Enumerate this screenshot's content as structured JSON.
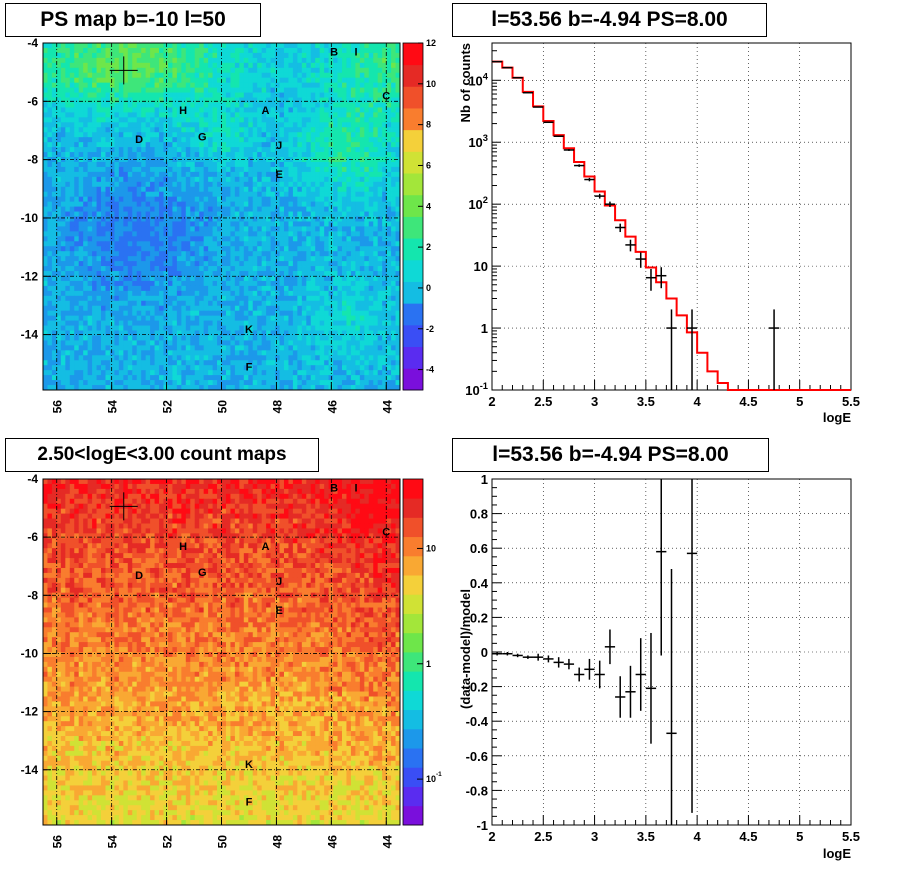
{
  "titles": {
    "top_left": "PS map b=-10 l=50",
    "top_right": "l=53.56 b=-4.94 PS=8.00",
    "bottom_left": "2.50<logE<3.00 count maps",
    "bottom_right": "l=53.56 b=-4.94 PS=8.00"
  },
  "colors": {
    "model_line": "#ff0000",
    "data_marker": "#000000",
    "grid": "#000000"
  },
  "chart_data": [
    {
      "type": "heatmap",
      "title": "PS map b=-10 l=50",
      "x_ticks": [
        56,
        54,
        52,
        50,
        48,
        46,
        44
      ],
      "y_ticks": [
        -4,
        -6,
        -8,
        -10,
        -12,
        -14
      ],
      "xlim": [
        56.5,
        43.5
      ],
      "ylim": [
        -15.9,
        -4
      ],
      "grid": true,
      "colorbar_ticks": [
        -4,
        -2,
        0,
        2,
        4,
        6,
        8,
        10,
        12
      ],
      "colorbar_range": [
        -5,
        12
      ],
      "marker": {
        "l": 53.56,
        "b": -4.94
      },
      "sources": [
        {
          "label": "B",
          "l": 45.9,
          "b": -4.3
        },
        {
          "label": "I",
          "l": 45.1,
          "b": -4.3
        },
        {
          "label": "C",
          "l": 44.0,
          "b": -5.8
        },
        {
          "label": "A",
          "l": 48.4,
          "b": -6.3
        },
        {
          "label": "H",
          "l": 51.4,
          "b": -6.3
        },
        {
          "label": "G",
          "l": 50.7,
          "b": -7.2
        },
        {
          "label": "D",
          "l": 53.0,
          "b": -7.3
        },
        {
          "label": "J",
          "l": 47.9,
          "b": -7.5
        },
        {
          "label": "E",
          "l": 47.9,
          "b": -8.5
        },
        {
          "label": "K",
          "l": 49.0,
          "b": -13.8
        },
        {
          "label": "F",
          "l": 49.0,
          "b": -15.1
        }
      ]
    },
    {
      "type": "line",
      "title": "l=53.56 b=-4.94 PS=8.00",
      "xlabel": "logE",
      "ylabel": "Nb of counts",
      "xlim": [
        2,
        5.5
      ],
      "ylim": [
        0.1,
        40000
      ],
      "yscale": "log",
      "x_ticks": [
        2,
        2.5,
        3,
        3.5,
        4,
        4.5,
        5,
        5.5
      ],
      "y_tick_labels": [
        "10^-1",
        "1",
        "10",
        "10^2",
        "10^3",
        "10^4"
      ],
      "grid": true,
      "series": [
        {
          "kind": "model",
          "bin_edges": [
            2.0,
            2.1,
            2.2,
            2.3,
            2.4,
            2.5,
            2.6,
            2.7,
            2.8,
            2.9,
            3.0,
            3.1,
            3.2,
            3.3,
            3.4,
            3.5,
            3.6,
            3.7,
            3.8,
            3.9,
            4.0,
            4.1,
            4.2,
            4.3,
            5.5
          ],
          "values": [
            20000,
            16000,
            11000,
            6500,
            3800,
            2200,
            1300,
            800,
            480,
            280,
            160,
            95,
            55,
            30,
            17,
            9.5,
            5.5,
            3,
            1.6,
            0.85,
            0.4,
            0.2,
            0.13,
            0.1
          ]
        },
        {
          "kind": "data",
          "x": [
            2.05,
            2.15,
            2.25,
            2.35,
            2.45,
            2.55,
            2.65,
            2.75,
            2.85,
            2.95,
            3.05,
            3.15,
            3.25,
            3.35,
            3.45,
            3.55,
            3.65,
            3.75,
            3.95,
            4.75
          ],
          "y": [
            20000,
            16000,
            11000,
            6300,
            3700,
            2100,
            1250,
            750,
            420,
            250,
            135,
            100,
            42,
            22,
            13,
            6.5,
            7,
            1,
            1,
            1
          ],
          "err_lo": [
            140,
            126,
            105,
            79,
            61,
            46,
            35,
            27,
            20,
            16,
            12,
            10,
            6.5,
            4.7,
            3.6,
            2.5,
            2.6,
            0.9,
            0.9,
            0.9
          ],
          "err_hi": [
            140,
            126,
            105,
            79,
            61,
            46,
            35,
            27,
            20,
            16,
            12,
            10,
            6.5,
            4.7,
            3.6,
            2.5,
            2.6,
            1,
            1,
            1
          ]
        }
      ]
    },
    {
      "type": "heatmap",
      "title": "2.50<logE<3.00 count maps",
      "x_ticks": [
        56,
        54,
        52,
        50,
        48,
        46,
        44
      ],
      "y_ticks": [
        -4,
        -6,
        -8,
        -10,
        -12,
        -14
      ],
      "xlim": [
        56.5,
        43.5
      ],
      "ylim": [
        -15.9,
        -4
      ],
      "grid": true,
      "colorbar_scale": "log",
      "colorbar_ticks": [
        "10^-1",
        "1",
        "10"
      ],
      "colorbar_range": [
        0.04,
        40
      ],
      "marker": {
        "l": 53.56,
        "b": -4.94
      },
      "sources": [
        {
          "label": "B",
          "l": 45.9,
          "b": -4.3
        },
        {
          "label": "I",
          "l": 45.1,
          "b": -4.3
        },
        {
          "label": "C",
          "l": 44.0,
          "b": -5.8
        },
        {
          "label": "A",
          "l": 48.4,
          "b": -6.3
        },
        {
          "label": "H",
          "l": 51.4,
          "b": -6.3
        },
        {
          "label": "G",
          "l": 50.7,
          "b": -7.2
        },
        {
          "label": "D",
          "l": 53.0,
          "b": -7.3
        },
        {
          "label": "J",
          "l": 47.9,
          "b": -7.5
        },
        {
          "label": "E",
          "l": 47.9,
          "b": -8.5
        },
        {
          "label": "K",
          "l": 49.0,
          "b": -13.8
        },
        {
          "label": "F",
          "l": 49.0,
          "b": -15.1
        }
      ]
    },
    {
      "type": "scatter",
      "title": "l=53.56 b=-4.94 PS=8.00",
      "xlabel": "logE",
      "ylabel": "(data-model)/model",
      "xlim": [
        2,
        5.5
      ],
      "ylim": [
        -1,
        1
      ],
      "x_ticks": [
        2,
        2.5,
        3,
        3.5,
        4,
        4.5,
        5,
        5.5
      ],
      "y_ticks": [
        -1,
        -0.8,
        -0.6,
        -0.4,
        -0.2,
        0,
        0.2,
        0.4,
        0.6,
        0.8,
        1
      ],
      "grid": true,
      "x": [
        2.05,
        2.15,
        2.25,
        2.35,
        2.45,
        2.55,
        2.65,
        2.75,
        2.85,
        2.95,
        3.05,
        3.15,
        3.25,
        3.35,
        3.45,
        3.55,
        3.65,
        3.75,
        3.95
      ],
      "y": [
        -0.01,
        -0.01,
        -0.02,
        -0.03,
        -0.03,
        -0.04,
        -0.06,
        -0.07,
        -0.13,
        -0.1,
        -0.13,
        0.03,
        -0.26,
        -0.23,
        -0.13,
        -0.21,
        0.58,
        -0.47,
        0.57
      ],
      "err": [
        0.01,
        0.01,
        0.01,
        0.01,
        0.02,
        0.02,
        0.03,
        0.03,
        0.04,
        0.06,
        0.08,
        0.1,
        0.12,
        0.15,
        0.21,
        0.32,
        0.6,
        0.95,
        1.5
      ]
    }
  ]
}
